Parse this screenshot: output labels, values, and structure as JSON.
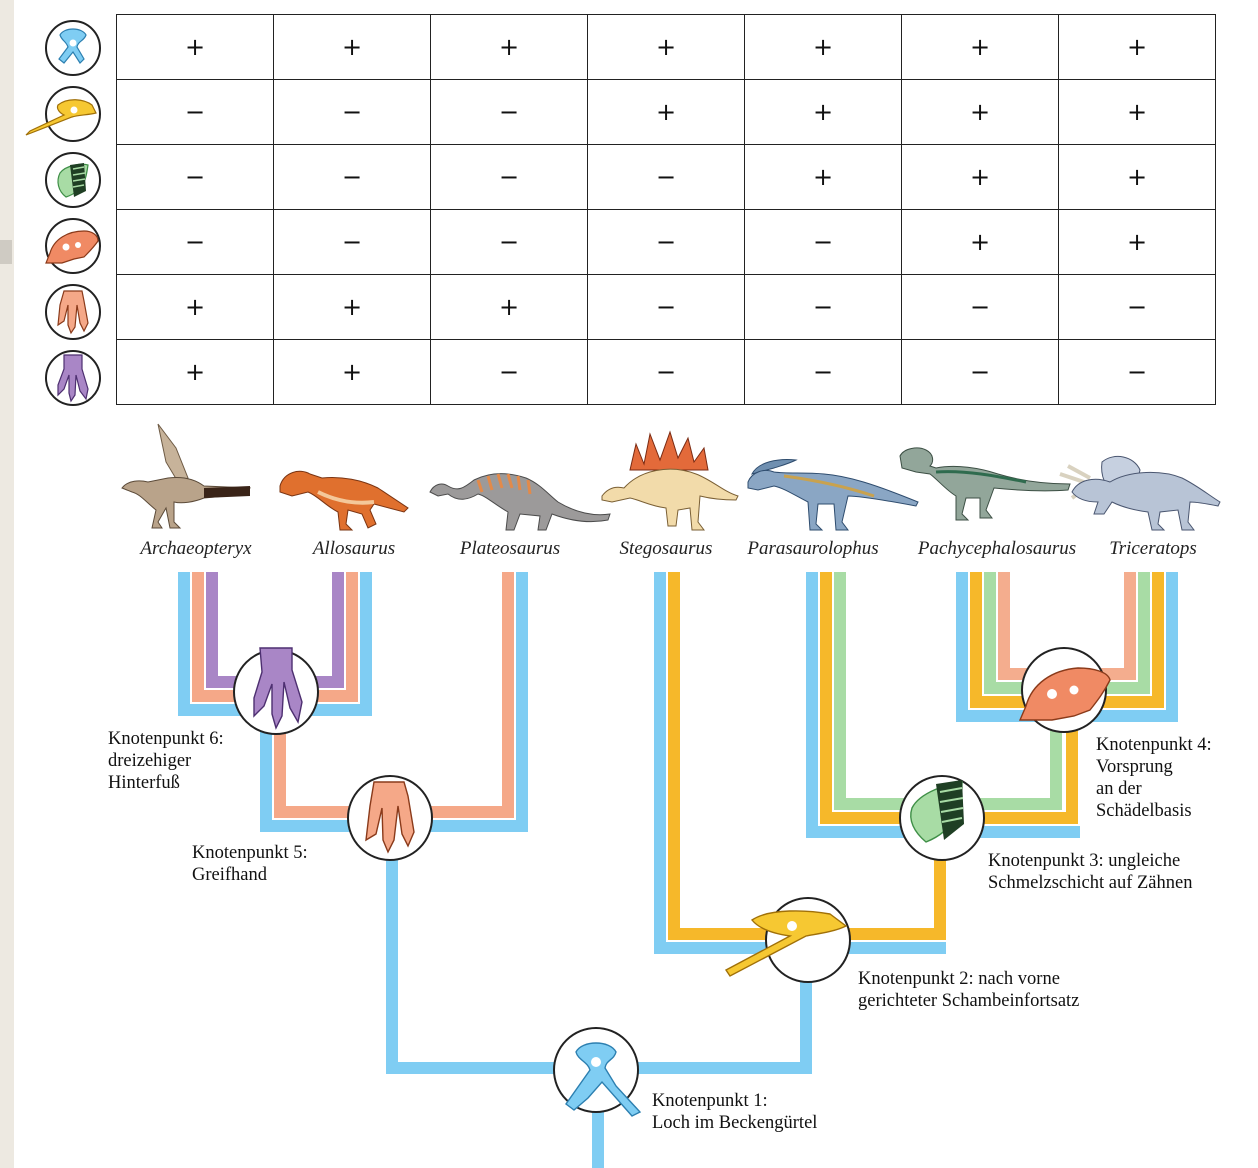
{
  "colors": {
    "node1_blue": "#7fcdf3",
    "node2_yellow": "#f6b82a",
    "node3_green": "#a8dca5",
    "node4_orange": "#f4ad8e",
    "node5_salmon": "#f5a888",
    "node6_purple": "#a986c6"
  },
  "row_icons": [
    "pelvis-hole-icon",
    "pubis-process-icon",
    "tooth-enamel-icon",
    "skull-ledge-icon",
    "grasping-hand-icon",
    "three-toed-foot-icon"
  ],
  "matrix": [
    [
      "+",
      "+",
      "+",
      "+",
      "+",
      "+",
      "+"
    ],
    [
      "−",
      "−",
      "−",
      "+",
      "+",
      "+",
      "+"
    ],
    [
      "−",
      "−",
      "−",
      "−",
      "+",
      "+",
      "+"
    ],
    [
      "−",
      "−",
      "−",
      "−",
      "−",
      "+",
      "+"
    ],
    [
      "+",
      "+",
      "+",
      "−",
      "−",
      "−",
      "−"
    ],
    [
      "+",
      "+",
      "−",
      "−",
      "−",
      "−",
      "−"
    ]
  ],
  "taxa": [
    "Archaeopteryx",
    "Allosaurus",
    "Plateosaurus",
    "Stegosaurus",
    "Parasaurolophus",
    "Pachycephalosaurus",
    "Triceratops"
  ],
  "nodes": {
    "node1": {
      "line1": "Knotenpunkt 1:",
      "line2": "Loch im Beckengürtel"
    },
    "node2": {
      "line1": "Knotenpunkt 2: nach vorne",
      "line2": "gerichteter Schambeinfortsatz"
    },
    "node3": {
      "line1": "Knotenpunkt 3: ungleiche",
      "line2": "Schmelzschicht auf Zähnen"
    },
    "node4": {
      "line1": "Knotenpunkt 4:",
      "line2": "Vorsprung",
      "line3": "an der",
      "line4": "Schädelbasis"
    },
    "node5": {
      "line1": "Knotenpunkt 5:",
      "line2": "Greifhand"
    },
    "node6": {
      "line1": "Knotenpunkt 6:",
      "line2": "dreizehiger",
      "line3": "Hinterfuß"
    }
  }
}
